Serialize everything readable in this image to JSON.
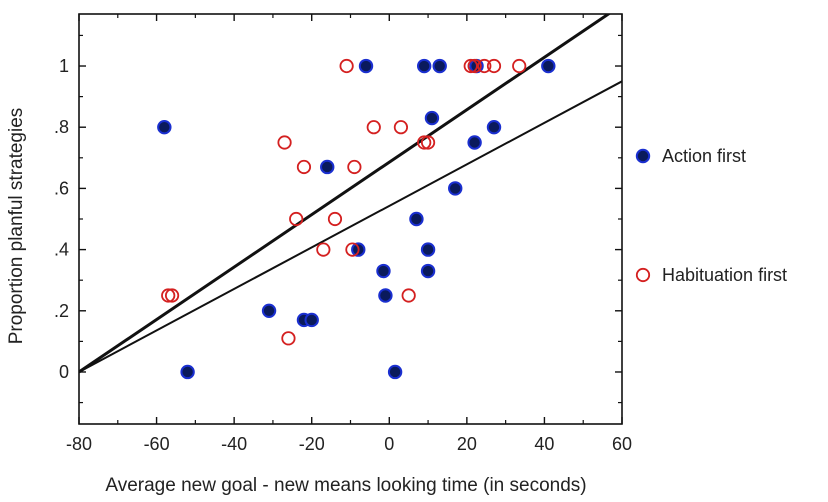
{
  "chart_data": {
    "type": "scatter",
    "title": "",
    "xlabel": "Average new goal - new means looking time (in seconds)",
    "ylabel": "Proportion planful strategies",
    "xlim": [
      -80,
      60
    ],
    "ylim": [
      -0.17,
      1.17
    ],
    "x_ticks": [
      -80,
      -60,
      -40,
      -20,
      0,
      20,
      40,
      60
    ],
    "x_tick_labels": [
      "-80",
      "-60",
      "-40",
      "-20",
      "0",
      "20",
      "40",
      "60"
    ],
    "y_ticks": [
      0,
      0.2,
      0.4,
      0.6,
      0.8,
      1.0
    ],
    "y_tick_labels": [
      "0",
      ".2",
      ".4",
      ".6",
      ".8",
      "1"
    ],
    "grid": false,
    "legend_position": "right",
    "colors": {
      "action_fill": "#0a1a5c",
      "action_stroke": "#1a2fd0",
      "habituation_stroke": "#d42020",
      "line": "#111111"
    },
    "series": [
      {
        "name": "Action first",
        "marker": "filled-circle",
        "points": [
          [
            -58,
            0.8
          ],
          [
            -52,
            0
          ],
          [
            -31,
            0.2
          ],
          [
            -22,
            0.17
          ],
          [
            -20,
            0.17
          ],
          [
            -16,
            0.67
          ],
          [
            -8,
            0.4
          ],
          [
            -6,
            1.0
          ],
          [
            -1.5,
            0.33
          ],
          [
            -1,
            0.25
          ],
          [
            1.5,
            0
          ],
          [
            7,
            0.5
          ],
          [
            9,
            1.0
          ],
          [
            10,
            0.4
          ],
          [
            10,
            0.33
          ],
          [
            11,
            0.83
          ],
          [
            13,
            1.0
          ],
          [
            17,
            0.6
          ],
          [
            22,
            0.75
          ],
          [
            22.5,
            1.0
          ],
          [
            27,
            0.8
          ],
          [
            41,
            1.0
          ]
        ]
      },
      {
        "name": "Habituation first",
        "marker": "open-circle",
        "points": [
          [
            -57,
            0.25
          ],
          [
            -56,
            0.25
          ],
          [
            -27,
            0.75
          ],
          [
            -26,
            0.11
          ],
          [
            -24,
            0.5
          ],
          [
            -22,
            0.67
          ],
          [
            -17,
            0.4
          ],
          [
            -14,
            0.5
          ],
          [
            -11,
            1.0
          ],
          [
            -9.5,
            0.4
          ],
          [
            -9,
            0.67
          ],
          [
            -4,
            0.8
          ],
          [
            3,
            0.8
          ],
          [
            5,
            0.25
          ],
          [
            9,
            0.75
          ],
          [
            10,
            0.75
          ],
          [
            21,
            1.0
          ],
          [
            22,
            1.0
          ],
          [
            24.5,
            1.0
          ],
          [
            27,
            1.0
          ],
          [
            33.5,
            1.0
          ]
        ]
      }
    ],
    "fit_lines": [
      {
        "x": [
          -80,
          60
        ],
        "y": [
          0,
          1.2
        ]
      },
      {
        "x": [
          -80,
          60
        ],
        "y": [
          0,
          0.95
        ]
      }
    ]
  }
}
